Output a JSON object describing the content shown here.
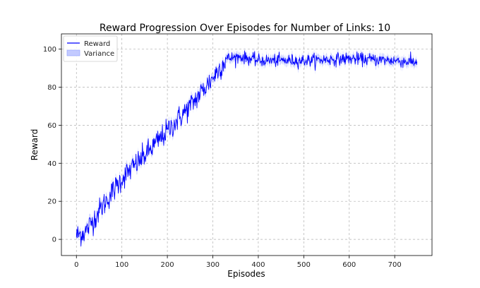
{
  "chart_data": {
    "type": "line",
    "title": "Reward Progression Over Episodes for Number of Links: 10",
    "xlabel": "Episodes",
    "ylabel": "Reward",
    "xlim": [
      -33,
      782
    ],
    "ylim": [
      -8.5,
      108
    ],
    "xticks": [
      0,
      100,
      200,
      300,
      400,
      500,
      600,
      700
    ],
    "yticks": [
      0,
      20,
      40,
      60,
      80,
      100
    ],
    "grid": true,
    "legend_position": "top-left",
    "colors": {
      "line": "#0000ff",
      "band": "#aab4ff"
    },
    "series": [
      {
        "name": "Reward",
        "kind": "line",
        "episodes": 750,
        "trend_points": [
          [
            0,
            2
          ],
          [
            20,
            4
          ],
          [
            50,
            15
          ],
          [
            100,
            32
          ],
          [
            150,
            44
          ],
          [
            200,
            57
          ],
          [
            250,
            70
          ],
          [
            300,
            85
          ],
          [
            330,
            95
          ],
          [
            360,
            96
          ],
          [
            400,
            94
          ],
          [
            500,
            94
          ],
          [
            600,
            95
          ],
          [
            700,
            94
          ],
          [
            750,
            93
          ]
        ],
        "noise_std_rising": 3.2,
        "noise_std_plateau": 1.6
      },
      {
        "name": "Variance",
        "kind": "band",
        "half_width": 2.2
      }
    ]
  }
}
